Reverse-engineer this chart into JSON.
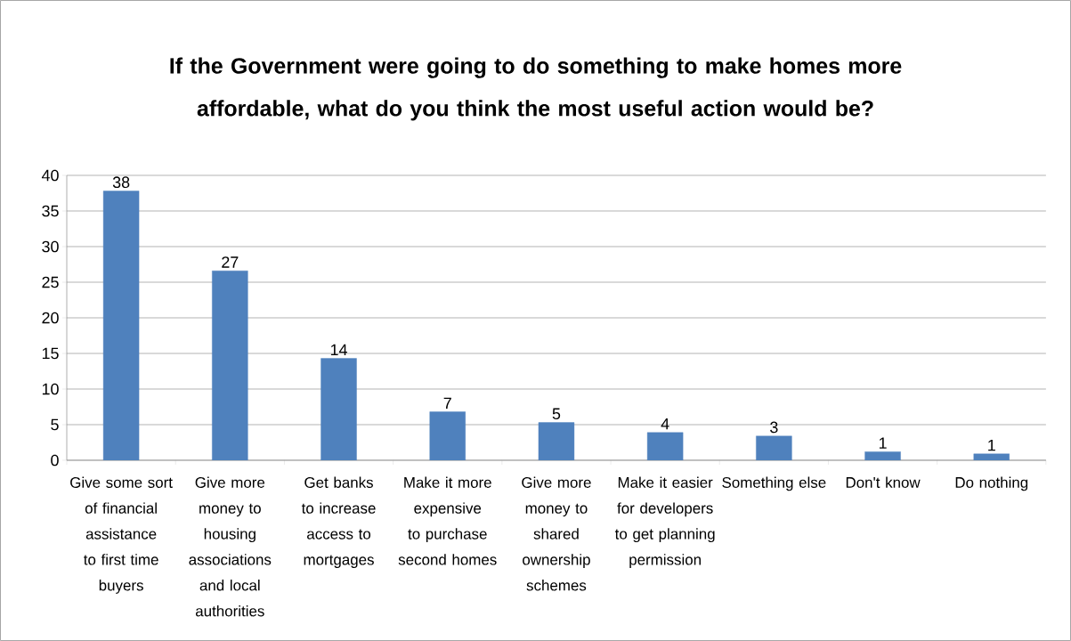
{
  "chart_data": {
    "type": "bar",
    "title": "If the Government were going to do something to make homes more affordable, what do you think the most useful action would be?",
    "categories": [
      "Give some sort of financial assistance to first time buyers",
      "Give more money to housing associations and local authorities",
      "Get banks to increase access to mortgages",
      "Make it more expensive to purchase second homes",
      "Give more money to shared ownership schemes",
      "Make it easier for developers to get planning permission",
      "Something else",
      "Don't know",
      "Do nothing"
    ],
    "values": [
      37.8,
      26.6,
      14.3,
      6.8,
      5.3,
      3.9,
      3.4,
      1.2,
      0.9
    ],
    "value_labels": [
      "38",
      "27",
      "14",
      "7",
      "5",
      "4",
      "3",
      "1",
      "1"
    ],
    "color": "#4f81bd",
    "ylim": [
      0,
      40
    ],
    "yticks": [
      0,
      5,
      10,
      15,
      20,
      25,
      30,
      35,
      40
    ],
    "grid": "y"
  }
}
